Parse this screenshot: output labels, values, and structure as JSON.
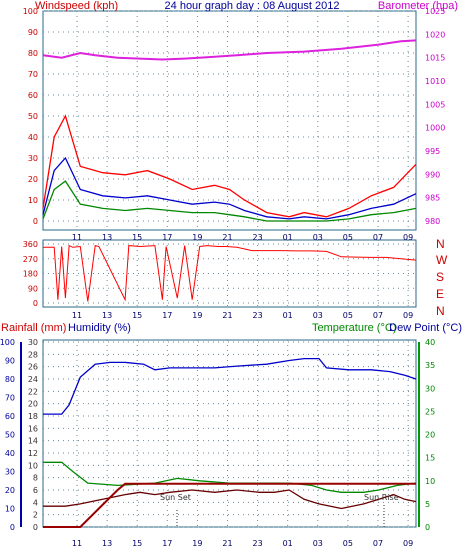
{
  "chart_data": [
    {
      "type": "line",
      "title": "24 hour graph day : 08 August 2012",
      "ylabel": "Windspeed (kph)",
      "y2label": "Barometer (hpa)",
      "ylim": [
        0,
        100
      ],
      "y2lim": [
        980,
        1025
      ],
      "grid": true,
      "x_ticks": [
        "11",
        "13",
        "15",
        "17",
        "19",
        "21",
        "23",
        "01",
        "03",
        "05",
        "07",
        "09"
      ],
      "y_ticks": [
        "100",
        "90",
        "80",
        "70",
        "60",
        "50",
        "40",
        "30",
        "20",
        "10",
        "0"
      ],
      "y2_ticks": [
        "1025",
        "1020",
        "1015",
        "1010",
        "1005",
        "1000",
        "995",
        "990",
        "985",
        "980"
      ],
      "colors": {
        "windspeed_label": "#cc0000",
        "barometer_label": "#cc00cc",
        "title": "#000099"
      },
      "series": [
        {
          "axis": "right",
          "color": "#dd22dd",
          "x": [
            0,
            0.05,
            0.1,
            0.14,
            0.2,
            0.26,
            0.32,
            0.38,
            0.44,
            0.52,
            0.6,
            0.7,
            0.8,
            0.9,
            0.96,
            1
          ],
          "values": [
            1015.5,
            1015,
            1016,
            1015.5,
            1015,
            1014.8,
            1014.6,
            1014.8,
            1015.1,
            1015.5,
            1016,
            1016.3,
            1016.9,
            1017.8,
            1018.5,
            1018.7
          ]
        },
        {
          "axis": "left",
          "color": "#ff0000",
          "x": [
            0,
            0.03,
            0.06,
            0.1,
            0.16,
            0.22,
            0.28,
            0.34,
            0.4,
            0.46,
            0.5,
            0.54,
            0.6,
            0.66,
            0.7,
            0.76,
            0.82,
            0.88,
            0.94,
            1
          ],
          "values": [
            6,
            40,
            50,
            26,
            23,
            22,
            24,
            20,
            15,
            17,
            15,
            10,
            4,
            2,
            4,
            2,
            6,
            12,
            16,
            27
          ]
        },
        {
          "axis": "left",
          "color": "#0000cc",
          "x": [
            0,
            0.03,
            0.06,
            0.1,
            0.16,
            0.22,
            0.28,
            0.34,
            0.4,
            0.46,
            0.5,
            0.54,
            0.6,
            0.66,
            0.7,
            0.76,
            0.82,
            0.88,
            0.94,
            1
          ],
          "values": [
            3,
            24,
            30,
            15,
            12,
            11,
            12,
            10,
            8,
            9,
            8,
            5,
            2,
            1,
            2,
            1,
            3,
            6,
            8,
            13
          ]
        },
        {
          "axis": "left",
          "color": "#008800",
          "x": [
            0,
            0.03,
            0.06,
            0.1,
            0.16,
            0.22,
            0.28,
            0.34,
            0.4,
            0.46,
            0.5,
            0.54,
            0.6,
            0.66,
            0.7,
            0.76,
            0.82,
            0.88,
            0.94,
            1
          ],
          "values": [
            1,
            15,
            19,
            8,
            6,
            5,
            6,
            5,
            4,
            4,
            3,
            2,
            0,
            0,
            0,
            0,
            1,
            3,
            4,
            6
          ]
        }
      ]
    },
    {
      "type": "line",
      "title": "",
      "ylim": [
        0,
        360
      ],
      "y_ticks": [
        "360",
        "270",
        "180",
        "90",
        "0"
      ],
      "x_ticks": [
        "11",
        "13",
        "15",
        "17",
        "19",
        "21",
        "23",
        "01",
        "03",
        "05",
        "07",
        "09"
      ],
      "direction_labels": [
        "N",
        "W",
        "S",
        "E",
        "N"
      ],
      "grid": true,
      "series": [
        {
          "color": "#ff0000",
          "x": [
            0,
            0.03,
            0.04,
            0.05,
            0.06,
            0.07,
            0.08,
            0.1,
            0.12,
            0.14,
            0.15,
            0.22,
            0.23,
            0.26,
            0.3,
            0.32,
            0.33,
            0.36,
            0.38,
            0.4,
            0.42,
            0.44,
            0.47,
            0.49,
            0.52,
            0.56,
            0.6,
            0.64,
            0.68,
            0.72,
            0.76,
            0.8,
            0.84,
            0.88,
            0.92,
            0.96,
            1
          ],
          "values": [
            340,
            340,
            20,
            345,
            30,
            350,
            340,
            345,
            10,
            350,
            345,
            20,
            350,
            345,
            350,
            20,
            345,
            30,
            350,
            20,
            345,
            350,
            345,
            345,
            340,
            320,
            320,
            320,
            318,
            318,
            315,
            282,
            280,
            278,
            278,
            270,
            262
          ]
        }
      ]
    },
    {
      "type": "line",
      "title": "",
      "ylabel": "Rainfall (mm)",
      "ylabel2": "Humidity (%)",
      "y2label": "Temperature (°C)",
      "y2label2": "Dew Point (°C)",
      "humidity_lim": [
        0,
        100
      ],
      "rain_lim": [
        0,
        30
      ],
      "temp_lim": [
        0,
        40
      ],
      "humidity_ticks": [
        "100",
        "90",
        "80",
        "70",
        "60",
        "50",
        "40",
        "30",
        "20",
        "10",
        "0"
      ],
      "rain_ticks": [
        "30",
        "28",
        "26",
        "24",
        "22",
        "20",
        "18",
        "16",
        "14",
        "12",
        "10",
        "8",
        "6",
        "4",
        "2",
        "0"
      ],
      "temp_ticks": [
        "40",
        "35",
        "30",
        "25",
        "20",
        "15",
        "10",
        "5",
        "0"
      ],
      "x_ticks": [
        "11",
        "13",
        "15",
        "17",
        "19",
        "21",
        "23",
        "01",
        "03",
        "05",
        "07",
        "09"
      ],
      "annotations": [
        "Sun Set",
        "Sun Rise"
      ],
      "colors": {
        "rain_label": "#cc0000",
        "humidity_label": "#000099",
        "temp_label": "#008800",
        "dew_label": "#000099"
      },
      "series": [
        {
          "axis": "humidity",
          "color": "#0000cc",
          "x": [
            0,
            0.05,
            0.07,
            0.1,
            0.14,
            0.18,
            0.22,
            0.27,
            0.3,
            0.34,
            0.4,
            0.46,
            0.52,
            0.6,
            0.66,
            0.7,
            0.74,
            0.76,
            0.82,
            0.88,
            0.93,
            0.97,
            1
          ],
          "values": [
            61,
            61,
            66,
            81,
            88,
            89,
            89,
            88,
            85,
            86,
            86,
            86,
            87,
            88,
            90,
            91,
            91,
            86,
            85,
            85,
            84,
            82,
            80
          ]
        },
        {
          "axis": "temp",
          "color": "#008800",
          "x": [
            0,
            0.05,
            0.08,
            0.12,
            0.2,
            0.3,
            0.36,
            0.42,
            0.5,
            0.58,
            0.66,
            0.72,
            0.76,
            0.8,
            0.86,
            0.9,
            0.95,
            1
          ],
          "values": [
            14,
            14,
            12,
            9.5,
            9,
            9.5,
            10.5,
            10,
            9.5,
            9.5,
            9.5,
            9,
            8,
            7.5,
            7.5,
            8,
            9,
            9.5
          ]
        },
        {
          "axis": "temp",
          "color": "#660000",
          "x": [
            0,
            0.06,
            0.1,
            0.16,
            0.22,
            0.26,
            0.3,
            0.34,
            0.4,
            0.46,
            0.52,
            0.58,
            0.62,
            0.66,
            0.7,
            0.74,
            0.8,
            0.86,
            0.9,
            0.94,
            0.97,
            1
          ],
          "values": [
            4.5,
            4.5,
            5,
            6,
            7,
            7.5,
            7,
            7.5,
            8,
            7.5,
            8,
            7.5,
            7.5,
            8,
            6,
            5,
            4,
            5,
            6,
            7,
            6,
            5.5
          ]
        },
        {
          "axis": "rain",
          "color": "#990000",
          "x": [
            0,
            0.1,
            0.15,
            0.2,
            0.22,
            0.25,
            1
          ],
          "values": [
            0,
            0,
            3,
            6,
            7,
            7,
            7
          ]
        }
      ]
    }
  ]
}
